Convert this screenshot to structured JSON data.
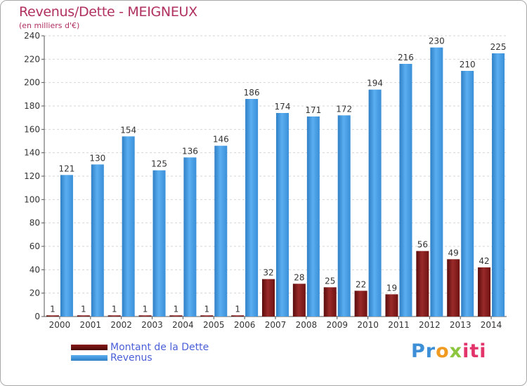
{
  "title": "Revenus/Dette - MEIGNEUX",
  "subtitle": "(en milliers d'€)",
  "colors": {
    "dette": "#7a1414",
    "revenus": "#3f97e0",
    "title": "#b03060",
    "legend_text": "#4a5fd8"
  },
  "legend": [
    {
      "label": "Montant de la Dette",
      "color": "#6b0f0f"
    },
    {
      "label": "Revenus",
      "color": "#3f97e0"
    }
  ],
  "logo": {
    "text": "Proxiti",
    "parts": [
      "Pr",
      "o",
      "x",
      "iti"
    ]
  },
  "chart_data": {
    "type": "bar",
    "title": "Revenus/Dette - MEIGNEUX",
    "ylabel": "",
    "xlabel": "",
    "ylim": [
      0,
      240
    ],
    "yticks": [
      0,
      20,
      40,
      60,
      80,
      100,
      120,
      140,
      160,
      180,
      200,
      220,
      240
    ],
    "grid": true,
    "legend_position": "bottom-left",
    "categories": [
      "2000",
      "2001",
      "2002",
      "2003",
      "2004",
      "2005",
      "2006",
      "2007",
      "2008",
      "2009",
      "2010",
      "2011",
      "2012",
      "2013",
      "2014"
    ],
    "series": [
      {
        "name": "Montant de la Dette",
        "values": [
          1,
          1,
          1,
          1,
          1,
          1,
          1,
          32,
          28,
          25,
          22,
          19,
          56,
          49,
          42
        ]
      },
      {
        "name": "Revenus",
        "values": [
          121,
          130,
          154,
          125,
          136,
          146,
          186,
          174,
          171,
          172,
          194,
          216,
          230,
          210,
          225
        ]
      }
    ]
  }
}
